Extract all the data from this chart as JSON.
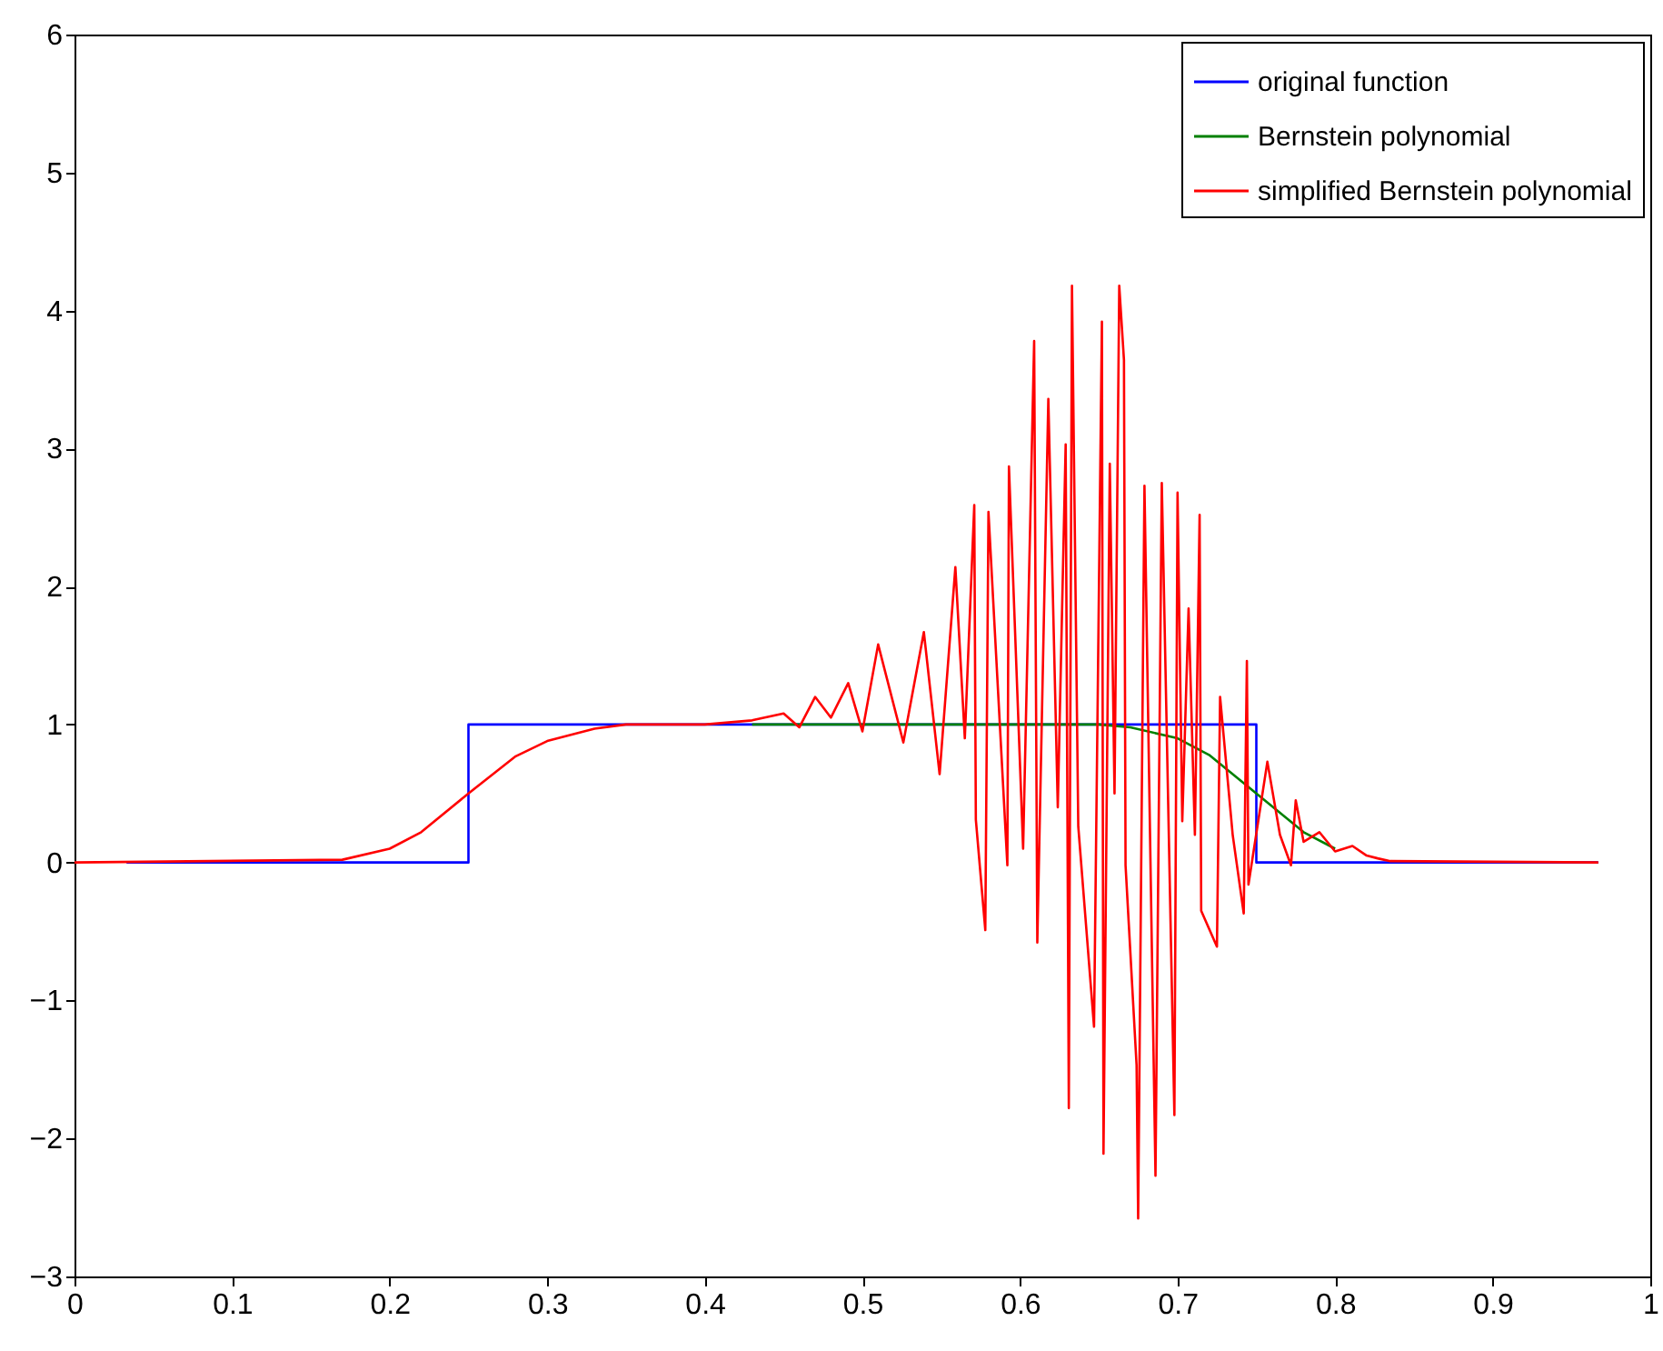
{
  "chart_data": {
    "type": "line",
    "xlim": [
      0,
      1
    ],
    "ylim": [
      -3,
      6
    ],
    "xticks": [
      0,
      0.1,
      0.2,
      0.3,
      0.4,
      0.5,
      0.6,
      0.7,
      0.8,
      0.9,
      1
    ],
    "yticks": [
      -3,
      -2,
      -1,
      0,
      1,
      2,
      3,
      4,
      5,
      6
    ],
    "legend": "top right",
    "series": [
      {
        "name": "original function",
        "color": "#0000ff",
        "x": [
          0.033,
          0.25,
          0.25,
          0.75,
          0.75,
          0.967
        ],
        "values": [
          0,
          0,
          1,
          1,
          0,
          0
        ]
      },
      {
        "name": "Bernstein polynomial",
        "color": "#008000",
        "x": [
          0.43,
          0.65,
          0.67,
          0.7,
          0.72,
          0.75,
          0.78,
          0.8
        ],
        "values": [
          1,
          1,
          0.98,
          0.9,
          0.78,
          0.5,
          0.22,
          0.1
        ]
      },
      {
        "name": "simplified Bernstein polynomial",
        "color": "#ff0000",
        "x": [
          0,
          0.17,
          0.2,
          0.22,
          0.25,
          0.28,
          0.3,
          0.33,
          0.35,
          0.4,
          0.43,
          0.45,
          0.46,
          0.47,
          0.48,
          0.491,
          0.5,
          0.51,
          0.526,
          0.539,
          0.549,
          0.559,
          0.565,
          0.571,
          0.572,
          0.578,
          0.58,
          0.592,
          0.593,
          0.602,
          0.609,
          0.611,
          0.618,
          0.624,
          0.629,
          0.631,
          0.633,
          0.637,
          0.647,
          0.652,
          0.653,
          0.657,
          0.66,
          0.663,
          0.666,
          0.667,
          0.674,
          0.675,
          0.679,
          0.686,
          0.69,
          0.698,
          0.7,
          0.703,
          0.707,
          0.711,
          0.714,
          0.715,
          0.725,
          0.727,
          0.735,
          0.742,
          0.744,
          0.745,
          0.757,
          0.765,
          0.772,
          0.775,
          0.78,
          0.79,
          0.8,
          0.811,
          0.82,
          0.827,
          0.835,
          0.967
        ],
        "values": [
          0,
          0.02,
          0.1,
          0.22,
          0.5,
          0.77,
          0.88,
          0.97,
          1,
          1,
          1.03,
          1.08,
          0.98,
          1.2,
          1.05,
          1.3,
          0.95,
          1.58,
          0.87,
          1.67,
          0.64,
          2.14,
          0.9,
          2.59,
          0.31,
          -0.49,
          2.54,
          -0.02,
          2.87,
          0.1,
          3.78,
          -0.58,
          3.36,
          0.4,
          3.03,
          -1.78,
          4.18,
          0.26,
          -1.19,
          3.92,
          -2.11,
          2.89,
          0.5,
          4.18,
          3.64,
          -0.02,
          -1.47,
          -2.58,
          2.73,
          -2.27,
          2.75,
          -1.83,
          2.68,
          0.3,
          1.84,
          0.2,
          2.52,
          -0.35,
          -0.61,
          1.2,
          0.2,
          -0.37,
          1.46,
          -0.16,
          0.73,
          0.2,
          -0.02,
          0.45,
          0.15,
          0.22,
          0.08,
          0.12,
          0.05,
          0.03,
          0.01,
          0
        ]
      }
    ]
  }
}
